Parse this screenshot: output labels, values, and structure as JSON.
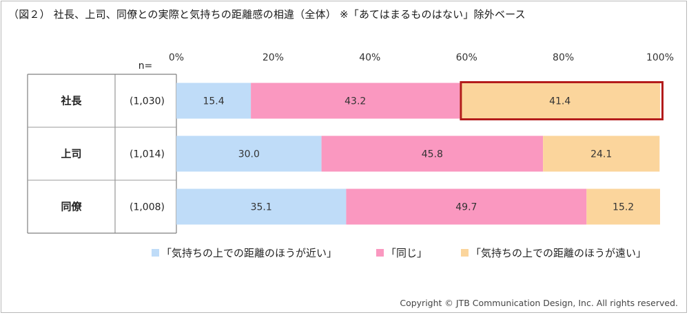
{
  "title": "（図２） 社長、上司、同僚との実際と気持ちの距離感の相違（全体） ※「あてはまるものはない」除外ベース",
  "copyright": "Copyright © JTB Communication Design, Inc. All rights reserved.",
  "n_label": "n=",
  "colors": {
    "near": "#bfdcf8",
    "same": "#fa98c0",
    "far": "#fbd59c",
    "highlight": "#b31b1b"
  },
  "chart_data": {
    "type": "bar",
    "orientation": "horizontal",
    "stacked": true,
    "categories": [
      "社長",
      "上司",
      "同僚"
    ],
    "n": [
      "(1,030)",
      "(1,014)",
      "(1,008)"
    ],
    "xlim": [
      0,
      100
    ],
    "xticks": [
      "0%",
      "20%",
      "40%",
      "60%",
      "80%",
      "100%"
    ],
    "series": [
      {
        "name": "「気持ちの上での距離のほうが近い」",
        "values": [
          15.4,
          30.0,
          35.1
        ],
        "labels": [
          "15.4",
          "30.0",
          "35.1"
        ]
      },
      {
        "name": "「同じ」",
        "values": [
          43.2,
          45.8,
          49.7
        ],
        "labels": [
          "43.2",
          "45.8",
          "49.7"
        ]
      },
      {
        "name": "「気持ちの上での距離のほうが遠い」",
        "values": [
          41.4,
          24.1,
          15.2
        ],
        "labels": [
          "41.4",
          "24.1",
          "15.2"
        ]
      }
    ],
    "highlight": {
      "category": "社長",
      "series": "「気持ちの上での距離のほうが遠い」"
    },
    "legend_position": "bottom"
  }
}
